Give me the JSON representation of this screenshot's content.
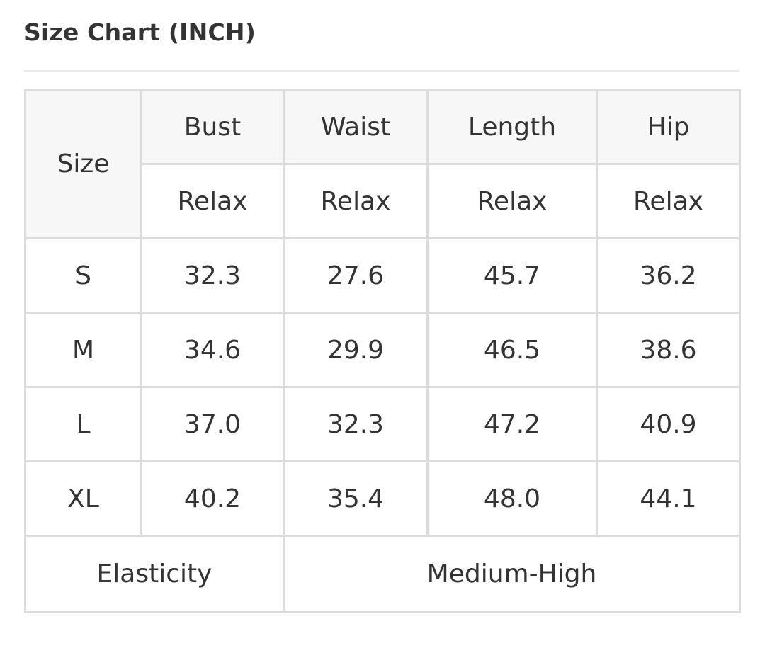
{
  "title": "Size Chart (INCH)",
  "table": {
    "size_header": "Size",
    "columns": [
      "Bust",
      "Waist",
      "Length",
      "Hip"
    ],
    "subheaders": [
      "Relax",
      "Relax",
      "Relax",
      "Relax"
    ],
    "rows": [
      {
        "size": "S",
        "values": [
          "32.3",
          "27.6",
          "45.7",
          "36.2"
        ]
      },
      {
        "size": "M",
        "values": [
          "34.6",
          "29.9",
          "46.5",
          "38.6"
        ]
      },
      {
        "size": "L",
        "values": [
          "37.0",
          "32.3",
          "47.2",
          "40.9"
        ]
      },
      {
        "size": "XL",
        "values": [
          "40.2",
          "35.4",
          "48.0",
          "44.1"
        ]
      }
    ],
    "footer_label": "Elasticity",
    "footer_value": "Medium-High"
  }
}
